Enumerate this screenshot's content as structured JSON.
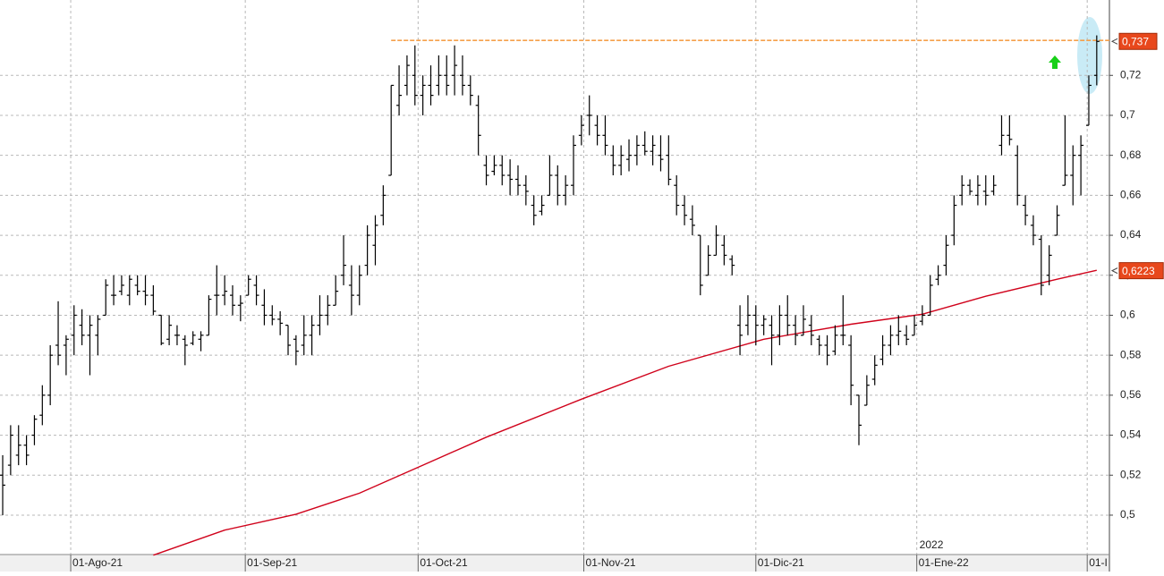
{
  "chart_data": {
    "type": "ohlc",
    "color": "#000000",
    "grid": true,
    "xlim": [
      -0.34,
      139.6
    ],
    "ylim": [
      0.4803,
      0.7577
    ],
    "yticks": [
      {
        "value": 0.5,
        "label": "0,5"
      },
      {
        "value": 0.52,
        "label": "0,52"
      },
      {
        "value": 0.54,
        "label": "0,54"
      },
      {
        "value": 0.56,
        "label": "0,56"
      },
      {
        "value": 0.58,
        "label": "0,58"
      },
      {
        "value": 0.6,
        "label": "0,6"
      },
      {
        "value": 0.62,
        "label": "0,62"
      },
      {
        "value": 0.64,
        "label": "0,64"
      },
      {
        "value": 0.66,
        "label": "0,66"
      },
      {
        "value": 0.68,
        "label": "0,68"
      },
      {
        "value": 0.7,
        "label": "0,7"
      },
      {
        "value": 0.72,
        "label": "0,72"
      }
    ],
    "xticks": [
      {
        "value": 8.58,
        "label": "01-Ago-21"
      },
      {
        "value": 30.6,
        "label": "01-Sep-21"
      },
      {
        "value": 52.4,
        "label": "01-Oct-21"
      },
      {
        "value": 73.3,
        "label": "01-Nov-21"
      },
      {
        "value": 95.0,
        "label": "01-Dic-21"
      },
      {
        "value": 115.3,
        "label": "01-Ene-22"
      },
      {
        "value": 136.8,
        "label": "01-I"
      }
    ],
    "year_label": "2022",
    "bars": [
      [
        0.52,
        0.53,
        0.5,
        0.515
      ],
      [
        0.525,
        0.545,
        0.52,
        0.54
      ],
      [
        0.53,
        0.545,
        0.525,
        0.535
      ],
      [
        0.535,
        0.54,
        0.525,
        0.53
      ],
      [
        0.54,
        0.55,
        0.535,
        0.548
      ],
      [
        0.55,
        0.565,
        0.545,
        0.56
      ],
      [
        0.56,
        0.585,
        0.555,
        0.58
      ],
      [
        0.585,
        0.607,
        0.575,
        0.58
      ],
      [
        0.585,
        0.59,
        0.57,
        0.588
      ],
      [
        0.59,
        0.605,
        0.58,
        0.6
      ],
      [
        0.595,
        0.603,
        0.585,
        0.59
      ],
      [
        0.59,
        0.6,
        0.57,
        0.595
      ],
      [
        0.59,
        0.6,
        0.58,
        0.598
      ],
      [
        0.6,
        0.618,
        0.6,
        0.615
      ],
      [
        0.61,
        0.62,
        0.605,
        0.61
      ],
      [
        0.612,
        0.62,
        0.61,
        0.615
      ],
      [
        0.61,
        0.62,
        0.605,
        0.618
      ],
      [
        0.615,
        0.62,
        0.61,
        0.612
      ],
      [
        0.612,
        0.62,
        0.605,
        0.61
      ],
      [
        0.61,
        0.615,
        0.6,
        0.602
      ],
      [
        0.6,
        0.6,
        0.585,
        0.586
      ],
      [
        0.588,
        0.6,
        0.585,
        0.595
      ],
      [
        0.59,
        0.595,
        0.585,
        0.59
      ],
      [
        0.588,
        0.59,
        0.575,
        0.585
      ],
      [
        0.586,
        0.592,
        0.585,
        0.59
      ],
      [
        0.588,
        0.592,
        0.582,
        0.59
      ],
      [
        0.59,
        0.61,
        0.59,
        0.608
      ],
      [
        0.61,
        0.625,
        0.6,
        0.61
      ],
      [
        0.61,
        0.62,
        0.605,
        0.612
      ],
      [
        0.61,
        0.615,
        0.6,
        0.605
      ],
      [
        0.605,
        0.61,
        0.597,
        0.606
      ],
      [
        0.61,
        0.62,
        0.61,
        0.618
      ],
      [
        0.615,
        0.62,
        0.605,
        0.61
      ],
      [
        0.605,
        0.613,
        0.595,
        0.6
      ],
      [
        0.6,
        0.605,
        0.595,
        0.598
      ],
      [
        0.598,
        0.602,
        0.59,
        0.596
      ],
      [
        0.595,
        0.595,
        0.58,
        0.585
      ],
      [
        0.588,
        0.59,
        0.575,
        0.582
      ],
      [
        0.585,
        0.6,
        0.58,
        0.59
      ],
      [
        0.59,
        0.6,
        0.58,
        0.595
      ],
      [
        0.595,
        0.61,
        0.59,
        0.6
      ],
      [
        0.6,
        0.61,
        0.595,
        0.605
      ],
      [
        0.605,
        0.62,
        0.605,
        0.612
      ],
      [
        0.62,
        0.64,
        0.615,
        0.625
      ],
      [
        0.615,
        0.625,
        0.6,
        0.61
      ],
      [
        0.61,
        0.625,
        0.605,
        0.62
      ],
      [
        0.625,
        0.645,
        0.62,
        0.64
      ],
      [
        0.635,
        0.65,
        0.625,
        0.645
      ],
      [
        0.65,
        0.665,
        0.645,
        0.66
      ],
      [
        0.67,
        0.715,
        0.67,
        0.715
      ],
      [
        0.705,
        0.725,
        0.7,
        0.71
      ],
      [
        0.715,
        0.73,
        0.71,
        0.725
      ],
      [
        0.72,
        0.735,
        0.705,
        0.71
      ],
      [
        0.71,
        0.72,
        0.7,
        0.715
      ],
      [
        0.715,
        0.725,
        0.705,
        0.71
      ],
      [
        0.715,
        0.73,
        0.71,
        0.72
      ],
      [
        0.72,
        0.73,
        0.71,
        0.715
      ],
      [
        0.72,
        0.735,
        0.71,
        0.725
      ],
      [
        0.72,
        0.73,
        0.71,
        0.715
      ],
      [
        0.715,
        0.72,
        0.705,
        0.71
      ],
      [
        0.705,
        0.71,
        0.68,
        0.69
      ],
      [
        0.675,
        0.68,
        0.665,
        0.67
      ],
      [
        0.672,
        0.68,
        0.67,
        0.675
      ],
      [
        0.675,
        0.68,
        0.665,
        0.67
      ],
      [
        0.67,
        0.678,
        0.66,
        0.668
      ],
      [
        0.668,
        0.675,
        0.66,
        0.665
      ],
      [
        0.665,
        0.67,
        0.655,
        0.662
      ],
      [
        0.655,
        0.66,
        0.645,
        0.65
      ],
      [
        0.652,
        0.66,
        0.65,
        0.655
      ],
      [
        0.66,
        0.68,
        0.66,
        0.67
      ],
      [
        0.67,
        0.675,
        0.655,
        0.66
      ],
      [
        0.66,
        0.67,
        0.655,
        0.665
      ],
      [
        0.665,
        0.69,
        0.66,
        0.685
      ],
      [
        0.69,
        0.7,
        0.685,
        0.695
      ],
      [
        0.7,
        0.71,
        0.69,
        0.7
      ],
      [
        0.695,
        0.7,
        0.685,
        0.69
      ],
      [
        0.69,
        0.7,
        0.68,
        0.685
      ],
      [
        0.68,
        0.685,
        0.67,
        0.675
      ],
      [
        0.675,
        0.685,
        0.67,
        0.68
      ],
      [
        0.678,
        0.688,
        0.672,
        0.68
      ],
      [
        0.68,
        0.69,
        0.675,
        0.685
      ],
      [
        0.685,
        0.692,
        0.68,
        0.682
      ],
      [
        0.682,
        0.69,
        0.675,
        0.685
      ],
      [
        0.68,
        0.69,
        0.672,
        0.678
      ],
      [
        0.68,
        0.69,
        0.665,
        0.668
      ],
      [
        0.665,
        0.67,
        0.65,
        0.655
      ],
      [
        0.655,
        0.66,
        0.645,
        0.65
      ],
      [
        0.648,
        0.655,
        0.64,
        0.645
      ],
      [
        0.64,
        0.64,
        0.61,
        0.615
      ],
      [
        0.62,
        0.635,
        0.62,
        0.63
      ],
      [
        0.63,
        0.645,
        0.63,
        0.64
      ],
      [
        0.635,
        0.64,
        0.625,
        0.63
      ],
      [
        0.628,
        0.63,
        0.62,
        0.625
      ],
      [
        0.595,
        0.605,
        0.58,
        0.59
      ],
      [
        0.595,
        0.61,
        0.59,
        0.6
      ],
      [
        0.6,
        0.605,
        0.585,
        0.595
      ],
      [
        0.595,
        0.6,
        0.59,
        0.598
      ],
      [
        0.595,
        0.6,
        0.575,
        0.59
      ],
      [
        0.59,
        0.605,
        0.585,
        0.6
      ],
      [
        0.6,
        0.61,
        0.59,
        0.595
      ],
      [
        0.595,
        0.6,
        0.585,
        0.59
      ],
      [
        0.59,
        0.605,
        0.59,
        0.598
      ],
      [
        0.595,
        0.6,
        0.585,
        0.59
      ],
      [
        0.588,
        0.59,
        0.58,
        0.585
      ],
      [
        0.585,
        0.59,
        0.575,
        0.58
      ],
      [
        0.582,
        0.595,
        0.58,
        0.59
      ],
      [
        0.59,
        0.61,
        0.585,
        0.59
      ],
      [
        0.585,
        0.59,
        0.555,
        0.565
      ],
      [
        0.56,
        0.56,
        0.535,
        0.545
      ],
      [
        0.555,
        0.57,
        0.555,
        0.565
      ],
      [
        0.568,
        0.58,
        0.565,
        0.575
      ],
      [
        0.578,
        0.59,
        0.575,
        0.585
      ],
      [
        0.585,
        0.595,
        0.58,
        0.59
      ],
      [
        0.59,
        0.6,
        0.585,
        0.592
      ],
      [
        0.59,
        0.595,
        0.585,
        0.588
      ],
      [
        0.59,
        0.6,
        0.59,
        0.595
      ],
      [
        0.597,
        0.605,
        0.595,
        0.6
      ],
      [
        0.6,
        0.62,
        0.6,
        0.615
      ],
      [
        0.618,
        0.625,
        0.615,
        0.62
      ],
      [
        0.625,
        0.64,
        0.62,
        0.635
      ],
      [
        0.64,
        0.66,
        0.635,
        0.655
      ],
      [
        0.66,
        0.67,
        0.655,
        0.665
      ],
      [
        0.665,
        0.668,
        0.66,
        0.662
      ],
      [
        0.66,
        0.67,
        0.655,
        0.665
      ],
      [
        0.662,
        0.67,
        0.655,
        0.66
      ],
      [
        0.662,
        0.67,
        0.66,
        0.665
      ],
      [
        0.685,
        0.7,
        0.68,
        0.69
      ],
      [
        0.69,
        0.7,
        0.685,
        0.688
      ],
      [
        0.68,
        0.685,
        0.655,
        0.66
      ],
      [
        0.655,
        0.66,
        0.645,
        0.65
      ],
      [
        0.645,
        0.65,
        0.635,
        0.64
      ],
      [
        0.638,
        0.64,
        0.61,
        0.615
      ],
      [
        0.62,
        0.635,
        0.615,
        0.63
      ],
      [
        0.64,
        0.655,
        0.64,
        0.65
      ],
      [
        0.665,
        0.7,
        0.665,
        0.67
      ],
      [
        0.67,
        0.685,
        0.655,
        0.68
      ],
      [
        0.68,
        0.69,
        0.66,
        0.685
      ],
      [
        0.695,
        0.72,
        0.695,
        0.715
      ],
      [
        0.72,
        0.74,
        0.715,
        0.737
      ]
    ],
    "moving_average": {
      "color": "#d0021b",
      "x": [
        19,
        28,
        37,
        45,
        53,
        61,
        73,
        84,
        96,
        107,
        116,
        124,
        133,
        138
      ],
      "values": [
        0.48,
        0.4925,
        0.5005,
        0.511,
        0.525,
        0.539,
        0.558,
        0.5745,
        0.588,
        0.5955,
        0.6005,
        0.6095,
        0.618,
        0.6225
      ]
    },
    "resistance": {
      "value": 0.7375,
      "from": 49,
      "color": "#f5a04a"
    },
    "price_labels": [
      {
        "value": 0.737,
        "label": "0,737"
      },
      {
        "value": 0.6223,
        "label": "0,6223"
      }
    ]
  }
}
